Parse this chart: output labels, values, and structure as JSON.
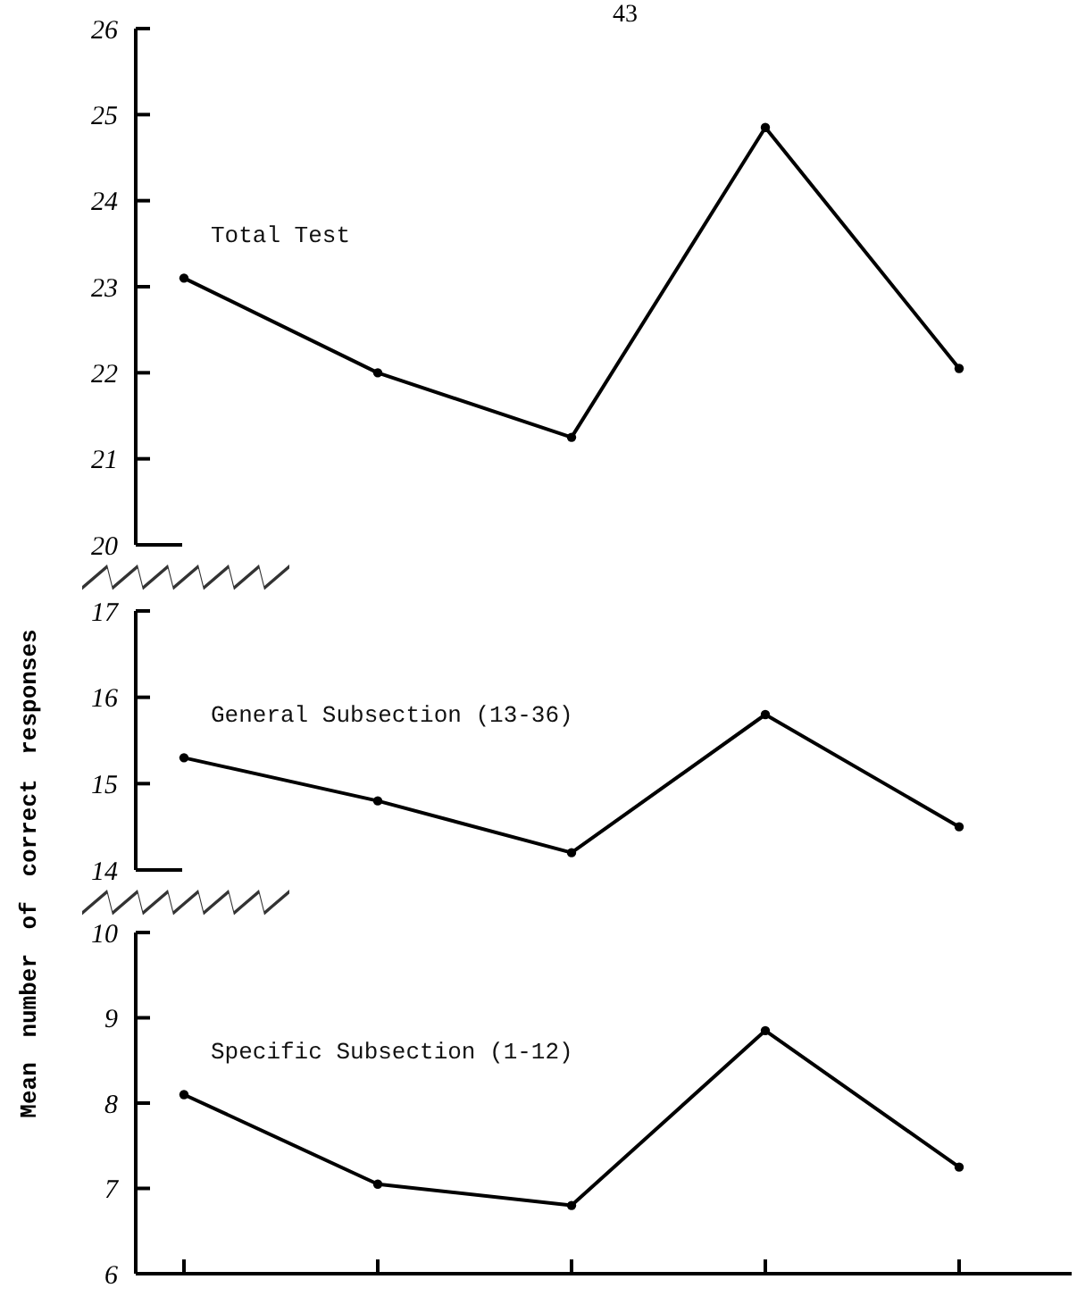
{
  "chart_data": [
    {
      "type": "line",
      "annotations": [
        "43"
      ],
      "categories": [
        null,
        null,
        null,
        null,
        null
      ],
      "series": [
        {
          "name": "Total Test",
          "color": "#000000",
          "values": [
            23.1,
            22.0,
            21.25,
            24.85,
            22.05
          ]
        }
      ],
      "ylim": [
        20,
        26
      ],
      "yticks": [
        20,
        21,
        22,
        23,
        24,
        25,
        26
      ],
      "tick_labels": "y",
      "marker": "circle"
    },
    {
      "type": "line",
      "ylabel": "Mean number of correct responses",
      "categories": [
        null,
        null,
        null,
        null,
        null
      ],
      "series": [
        {
          "name": "General Subsection (13-36)",
          "color": "#000000",
          "values": [
            15.3,
            14.8,
            14.2,
            15.8,
            14.5
          ]
        }
      ],
      "ylim": [
        14,
        17
      ],
      "yticks": [
        14,
        15,
        16,
        17
      ],
      "tick_labels": "y",
      "marker": "circle"
    },
    {
      "type": "line",
      "categories": [
        null,
        null,
        null,
        null,
        null
      ],
      "series": [
        {
          "name": "Specific Subsection (1-12)",
          "color": "#000000",
          "values": [
            8.1,
            7.05,
            6.8,
            8.85,
            7.25
          ]
        }
      ],
      "ylim": [
        6,
        10
      ],
      "yticks": [
        6,
        7,
        8,
        9,
        10
      ],
      "tick_labels": "y",
      "marker": "circle"
    }
  ]
}
